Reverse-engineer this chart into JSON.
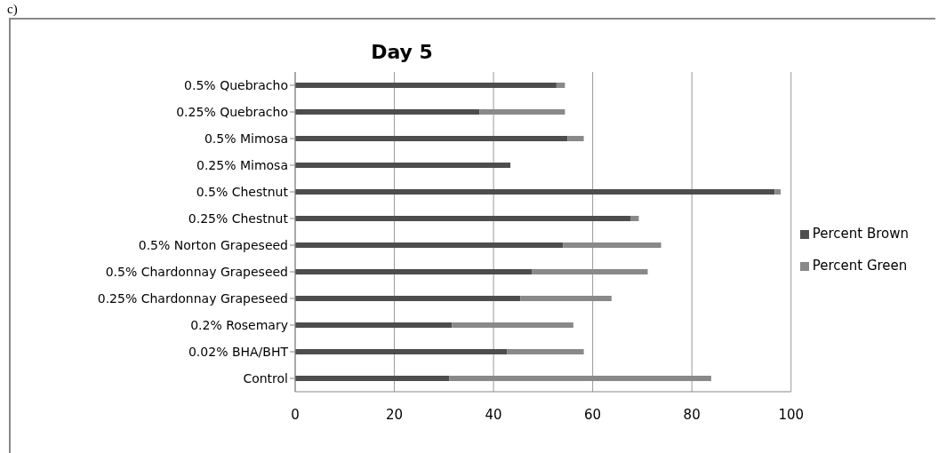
{
  "chart_data": {
    "type": "bar",
    "title": "Day 5",
    "orientation": "horizontal",
    "stacked": true,
    "categories": [
      "0.5% Quebracho",
      "0.25% Quebracho",
      "0.5% Mimosa",
      "0.25% Mimosa",
      "0.5% Chestnut",
      "0.25% Chestnut",
      "0.5% Norton Grapeseed",
      "0.5% Chardonnay Grapeseed",
      "0.25% Chardonnay Grapeseed",
      "0.2% Rosemary",
      "0.02% BHA/BHT",
      "Control"
    ],
    "series": [
      {
        "name": "Percent Brown",
        "color": "#4d4d4d",
        "values": [
          52.7,
          37.2,
          54.9,
          43.4,
          96.7,
          67.6,
          54.0,
          47.8,
          45.4,
          31.6,
          42.7,
          31.1
        ]
      },
      {
        "name": "Percent Green",
        "color": "#898989",
        "values": [
          1.7,
          17.2,
          3.3,
          0,
          1.2,
          1.7,
          19.8,
          23.3,
          18.4,
          24.5,
          15.5,
          52.8
        ]
      }
    ],
    "xlim": [
      0,
      100
    ],
    "xticks": [
      0,
      20,
      40,
      60,
      80,
      100
    ],
    "grid": "x",
    "legend": "right",
    "annotations": [
      "c)"
    ]
  }
}
